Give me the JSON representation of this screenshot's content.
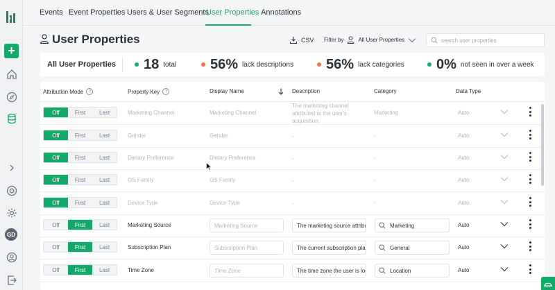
{
  "nav": {
    "tabs": [
      "Events",
      "Event Properties",
      "Users & User Segments",
      "User Properties",
      "Annotations"
    ],
    "active": "User Properties"
  },
  "page": {
    "title": "User Properties",
    "csv_label": "CSV",
    "filter_label": "Filter by",
    "filter_value": "All User Properties",
    "search_placeholder": "search user properties"
  },
  "stats": {
    "title": "All User Properties",
    "total": {
      "value": "18",
      "label": "total",
      "color": "#13a96b"
    },
    "lack_desc": {
      "value": "56%",
      "label": "lack descriptions",
      "color": "#ef6f4f"
    },
    "lack_cat": {
      "value": "56%",
      "label": "lack categories",
      "color": "#ef6f4f"
    },
    "not_seen": {
      "value": "0%",
      "label": "not seen in over a week",
      "color": "#13a96b"
    }
  },
  "table": {
    "headers": {
      "attr": "Attribution Mode",
      "key": "Property Key",
      "display": "Display Name",
      "desc": "Description",
      "cat": "Category",
      "type": "Data Type"
    },
    "modes": [
      "Off",
      "First",
      "Last"
    ],
    "rows": [
      {
        "mode": "Off",
        "key": "Marketing Channel",
        "display": "Marketing Channel",
        "desc": [
          "The marketing channel",
          "attributed to the user's",
          "acquisition."
        ],
        "category": "Marketing",
        "type": "Auto"
      },
      {
        "mode": "Off",
        "key": "Gender",
        "display": "Gender",
        "desc": [
          "-"
        ],
        "category": "-",
        "type": "Auto"
      },
      {
        "mode": "Off",
        "key": "Dietary Preference",
        "display": "Dietary Preference",
        "desc": [
          "-"
        ],
        "category": "-",
        "type": "Auto"
      },
      {
        "mode": "Off",
        "key": "OS Family",
        "display": "OS Family",
        "desc": [
          "-"
        ],
        "category": "-",
        "type": "Auto"
      },
      {
        "mode": "Off",
        "key": "Device Type",
        "display": "Device Type",
        "desc": [
          "-"
        ],
        "category": "-",
        "type": "Auto"
      },
      {
        "mode": "First",
        "key": "Marketing Source",
        "display": "Marketing Source",
        "desc": [
          "The marketing source attribu"
        ],
        "category": "Marketing",
        "type": "Auto"
      },
      {
        "mode": "First",
        "key": "Subscription Plan",
        "display": "Subscription Plan",
        "desc": [
          "The current subscription plai"
        ],
        "category": "General",
        "type": "Auto"
      },
      {
        "mode": "First",
        "key": "Time Zone",
        "display": "Time Zone",
        "desc": [
          "The time zone the user is loc"
        ],
        "category": "Location",
        "type": "Auto"
      }
    ]
  },
  "rail": {
    "avatar_initials": "GD"
  },
  "colors": {
    "accent": "#13a96b",
    "warn": "#ef6f4f"
  }
}
